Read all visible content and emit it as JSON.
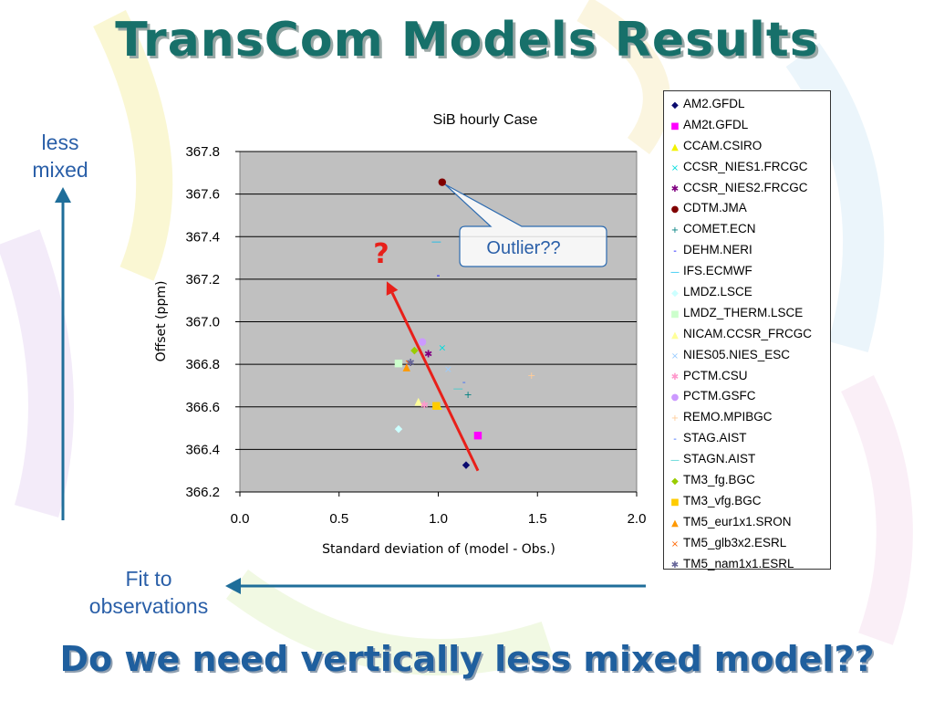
{
  "slide": {
    "title": "TransCom Models Results",
    "bottom_question": "Do we need vertically less mixed model??",
    "left_label_top": [
      "less",
      "mixed"
    ],
    "left_label_bottom": [
      "Fit to",
      "observations"
    ],
    "question_mark": "?",
    "callout_text": "Outlier??",
    "accent_color": "#17706a",
    "arrow_color": "#1f6e9a"
  },
  "chart_data": {
    "type": "scatter",
    "title": "SiB hourly Case",
    "xlabel": "Standard deviation of (model - Obs.)",
    "ylabel": "Offset (ppm)",
    "xlim": [
      0.0,
      2.0
    ],
    "ylim": [
      366.2,
      367.8
    ],
    "x_ticks": [
      "0.0",
      "0.5",
      "1.0",
      "1.5",
      "2.0"
    ],
    "y_ticks": [
      "366.2",
      "366.4",
      "366.6",
      "366.8",
      "367.0",
      "367.2",
      "367.4",
      "367.6",
      "367.8"
    ],
    "grid": "horizontal",
    "legend_position": "right",
    "plot_background": "#c0c0c0",
    "trend_line": {
      "x": [
        1.2,
        0.74
      ],
      "y": [
        366.3,
        367.19
      ],
      "color": "#e8201a"
    },
    "series": [
      {
        "name": "AM2.GFDL",
        "marker": "◆",
        "color": "#0a0a6e",
        "x": [
          1.14
        ],
        "y": [
          366.33
        ]
      },
      {
        "name": "AM2t.GFDL",
        "marker": "■",
        "color": "#ff00ff",
        "x": [
          1.2
        ],
        "y": [
          366.47
        ]
      },
      {
        "name": "CCAM.CSIRO",
        "marker": "▲",
        "color": "#f2f200",
        "x": [
          1.0
        ],
        "y": [
          366.61
        ]
      },
      {
        "name": "CCSR_NIES1.FRCGC",
        "marker": "×",
        "color": "#00dddd",
        "x": [
          1.02
        ],
        "y": [
          366.88
        ]
      },
      {
        "name": "CCSR_NIES2.FRCGC",
        "marker": "✱",
        "color": "#800080",
        "x": [
          0.95
        ],
        "y": [
          366.85
        ]
      },
      {
        "name": "CDTM.JMA",
        "marker": "●",
        "color": "#800000",
        "x": [
          1.02
        ],
        "y": [
          367.66
        ]
      },
      {
        "name": "COMET.ECN",
        "marker": "+",
        "color": "#008080",
        "x": [
          1.15
        ],
        "y": [
          366.66
        ]
      },
      {
        "name": "DEHM.NERI",
        "marker": "-",
        "color": "#0000ff",
        "x": [
          1.0
        ],
        "y": [
          367.22
        ]
      },
      {
        "name": "IFS.ECMWF",
        "marker": "—",
        "color": "#00bbee",
        "x": [
          0.99
        ],
        "y": [
          367.38
        ]
      },
      {
        "name": "LMDZ.LSCE",
        "marker": "◆",
        "color": "#ccffff",
        "x": [
          0.8
        ],
        "y": [
          366.5
        ]
      },
      {
        "name": "LMDZ_THERM.LSCE",
        "marker": "■",
        "color": "#ccffcc",
        "x": [
          0.8
        ],
        "y": [
          366.81
        ]
      },
      {
        "name": "NICAM.CCSR_FRCGC",
        "marker": "▲",
        "color": "#ffff99",
        "x": [
          0.9
        ],
        "y": [
          366.63
        ]
      },
      {
        "name": "NIES05.NIES_ESC",
        "marker": "×",
        "color": "#99ccff",
        "x": [
          1.05
        ],
        "y": [
          366.78
        ]
      },
      {
        "name": "PCTM.CSU",
        "marker": "✱",
        "color": "#ff99cc",
        "x": [
          0.93
        ],
        "y": [
          366.61
        ]
      },
      {
        "name": "PCTM.GSFC",
        "marker": "●",
        "color": "#cc99ff",
        "x": [
          0.92
        ],
        "y": [
          366.91
        ]
      },
      {
        "name": "REMO.MPIBGC",
        "marker": "+",
        "color": "#ffcc99",
        "x": [
          1.47
        ],
        "y": [
          366.75
        ]
      },
      {
        "name": "STAG.AIST",
        "marker": "-",
        "color": "#3366ff",
        "x": [
          1.13
        ],
        "y": [
          366.72
        ]
      },
      {
        "name": "STAGN.AIST",
        "marker": "—",
        "color": "#33cccc",
        "x": [
          1.1
        ],
        "y": [
          366.69
        ]
      },
      {
        "name": "TM3_fg.BGC",
        "marker": "◆",
        "color": "#99cc00",
        "x": [
          0.88
        ],
        "y": [
          366.87
        ]
      },
      {
        "name": "TM3_vfg.BGC",
        "marker": "■",
        "color": "#ffcc00",
        "x": [
          0.99
        ],
        "y": [
          366.61
        ]
      },
      {
        "name": "TM5_eur1x1.SRON",
        "marker": "▲",
        "color": "#ff9900",
        "x": [
          0.84
        ],
        "y": [
          366.79
        ]
      },
      {
        "name": "TM5_glb3x2.ESRL",
        "marker": "×",
        "color": "#ff6600",
        "x": [
          0.85
        ],
        "y": [
          366.81
        ]
      },
      {
        "name": "TM5_nam1x1.ESRL",
        "marker": "✱",
        "color": "#666699",
        "x": [
          0.86
        ],
        "y": [
          366.81
        ]
      }
    ]
  }
}
